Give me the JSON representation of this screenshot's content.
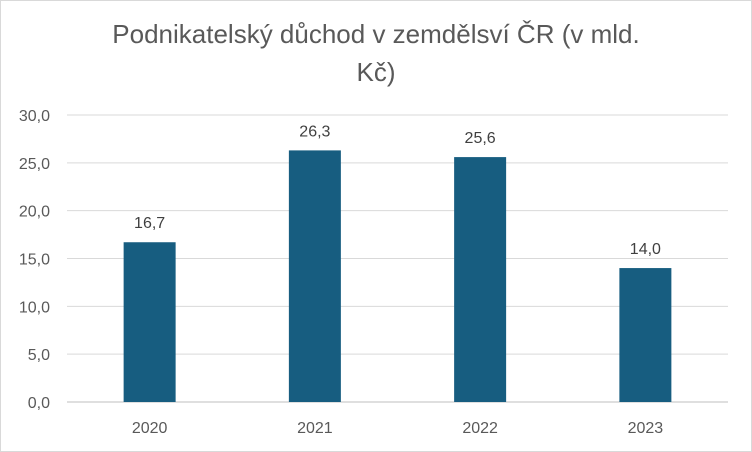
{
  "chart_data": {
    "type": "bar",
    "title": "Podnikatelský důchod v zemdělsví ČR (v mld. Kč)",
    "categories": [
      "2020",
      "2021",
      "2022",
      "2023"
    ],
    "values": [
      16.7,
      26.3,
      25.6,
      14.0
    ],
    "data_labels": [
      "16,7",
      "26,3",
      "25,6",
      "14,0"
    ],
    "ylim": [
      0,
      30
    ],
    "yticks": [
      0,
      5,
      10,
      15,
      20,
      25,
      30
    ],
    "ytick_labels": [
      "0,0",
      "5,0",
      "10,0",
      "15,0",
      "20,0",
      "25,0",
      "30,0"
    ],
    "xlabel": "",
    "ylabel": "",
    "grid": true,
    "legend": "none",
    "bar_color": "#175d80",
    "grid_color": "#d9d9d9"
  }
}
